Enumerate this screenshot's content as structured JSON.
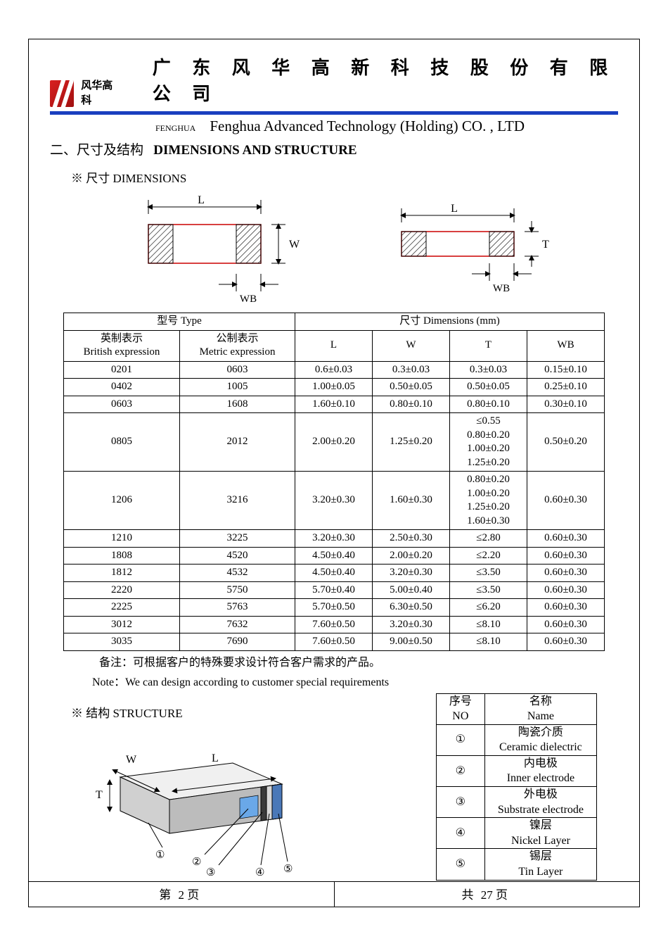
{
  "header": {
    "logo_text": "风华高科",
    "cn_title": "广 东 风 华 高 新 科 技 股 份 有 限 公 司",
    "fenghua_label": "FENGHUA",
    "en_title": "Fenghua Advanced Technology (Holding) CO. , LTD",
    "blue_bar_color": "#1a3fbf",
    "logo_color": "#c01818"
  },
  "section": {
    "title_cn": "二、尺寸及结构",
    "title_en": "DIMENSIONS AND STRUCTURE",
    "dims_sub": "※ 尺寸 DIMENSIONS",
    "struct_sub": "※ 结构 STRUCTURE"
  },
  "diagram_labels": {
    "L": "L",
    "W": "W",
    "T": "T",
    "WB": "WB"
  },
  "dim_table": {
    "header_type": "型号 Type",
    "header_dims": "尺寸     Dimensions      (mm)",
    "col_british_cn": "英制表示",
    "col_british_en": "British expression",
    "col_metric_cn": "公制表示",
    "col_metric_en": "Metric expression",
    "col_L": "L",
    "col_W": "W",
    "col_T": "T",
    "col_WB": "WB",
    "rows": [
      {
        "b": "0201",
        "m": "0603",
        "L": "0.6±0.03",
        "W": "0.3±0.03",
        "T": "0.3±0.03",
        "WB": "0.15±0.10"
      },
      {
        "b": "0402",
        "m": "1005",
        "L": "1.00±0.05",
        "W": "0.50±0.05",
        "T": "0.50±0.05",
        "WB": "0.25±0.10"
      },
      {
        "b": "0603",
        "m": "1608",
        "L": "1.60±0.10",
        "W": "0.80±0.10",
        "T": "0.80±0.10",
        "WB": "0.30±0.10"
      },
      {
        "b": "0805",
        "m": "2012",
        "L": "2.00±0.20",
        "W": "1.25±0.20",
        "T": "≤0.55\n0.80±0.20\n1.00±0.20\n1.25±0.20",
        "WB": "0.50±0.20"
      },
      {
        "b": "1206",
        "m": "3216",
        "L": "3.20±0.30",
        "W": "1.60±0.30",
        "T": "0.80±0.20\n1.00±0.20\n1.25±0.20\n1.60±0.30",
        "WB": "0.60±0.30"
      },
      {
        "b": "1210",
        "m": "3225",
        "L": "3.20±0.30",
        "W": "2.50±0.30",
        "T": "≤2.80",
        "WB": "0.60±0.30"
      },
      {
        "b": "1808",
        "m": "4520",
        "L": "4.50±0.40",
        "W": "2.00±0.20",
        "T": "≤2.20",
        "WB": "0.60±0.30"
      },
      {
        "b": "1812",
        "m": "4532",
        "L": "4.50±0.40",
        "W": "3.20±0.30",
        "T": "≤3.50",
        "WB": "0.60±0.30"
      },
      {
        "b": "2220",
        "m": "5750",
        "L": "5.70±0.40",
        "W": "5.00±0.40",
        "T": "≤3.50",
        "WB": "0.60±0.30"
      },
      {
        "b": "2225",
        "m": "5763",
        "L": "5.70±0.50",
        "W": "6.30±0.50",
        "T": "≤6.20",
        "WB": "0.60±0.30"
      },
      {
        "b": "3012",
        "m": "7632",
        "L": "7.60±0.50",
        "W": "3.20±0.30",
        "T": "≤8.10",
        "WB": "0.60±0.30"
      },
      {
        "b": "3035",
        "m": "7690",
        "L": "7.60±0.50",
        "W": "9.00±0.50",
        "T": "≤8.10",
        "WB": "0.60±0.30"
      }
    ]
  },
  "notes": {
    "cn": "备注：可根据客户的特殊要求设计符合客户需求的产品。",
    "en": "Note：We can design according to customer special requirements"
  },
  "struct_table": {
    "hdr_no_cn": "序号",
    "hdr_no_en": "NO",
    "hdr_name_cn": "名称",
    "hdr_name_en": "Name",
    "rows": [
      {
        "no": "①",
        "cn": "陶瓷介质",
        "en": "Ceramic   dielectric"
      },
      {
        "no": "②",
        "cn": "内电极",
        "en": "Inner   electrode"
      },
      {
        "no": "③",
        "cn": "外电极",
        "en": "Substrate   electrode"
      },
      {
        "no": "④",
        "cn": "镍层",
        "en": "Nickel Layer"
      },
      {
        "no": "⑤",
        "cn": "锡层",
        "en": "Tin Layer"
      }
    ]
  },
  "struct_diagram": {
    "labels": {
      "W": "W",
      "L": "L",
      "T": "T",
      "n1": "①",
      "n2": "②",
      "n3": "③",
      "n4": "④",
      "n5": "⑤"
    },
    "colors": {
      "body": "#e8e8e8",
      "body_dark": "#bcbcbc",
      "inner": "#6aa8e8",
      "outer": "#3a3a3a",
      "nickel": "#d8d8d8",
      "tin": "#4a78b8"
    }
  },
  "footer": {
    "left_prefix": "第",
    "left_page": "2",
    "left_suffix": "页",
    "right_prefix": "共",
    "right_total": "27",
    "right_suffix": "页"
  },
  "colors": {
    "text": "#000000",
    "border": "#000000",
    "red": "#cc0000"
  }
}
